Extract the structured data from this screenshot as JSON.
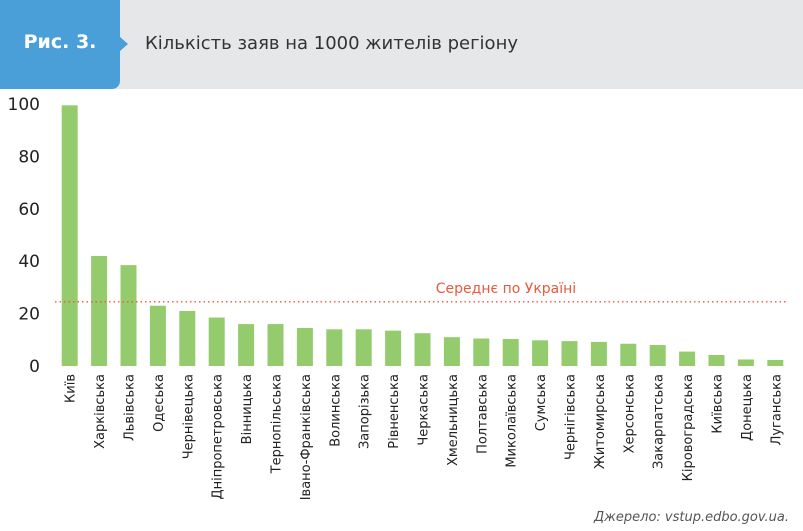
{
  "header": {
    "figure_label": "Рис. 3.",
    "title": "Кількість заяв на 1000 жителів регіону"
  },
  "colors": {
    "accent": "#4a9fd8",
    "bar": "#94cc6d",
    "average_line": "#e8593c",
    "header_bg": "#e6e7e8"
  },
  "chart_data": {
    "type": "bar",
    "title": "Кількість заяв на 1000 жителів регіону",
    "categories": [
      "Київ",
      "Харківська",
      "Львівська",
      "Одеська",
      "Чернівецька",
      "Дніпропетровська",
      "Вінницька",
      "Тернопільська",
      "Івано-Франківська",
      "Волинська",
      "Запорізька",
      "Рівненська",
      "Черкаська",
      "Хмельницька",
      "Полтавська",
      "Миколаївська",
      "Сумська",
      "Чернігівська",
      "Житомирська",
      "Херсонська",
      "Закарпатська",
      "Кіровоградська",
      "Київська",
      "Донецька",
      "Луганська"
    ],
    "values": [
      99.5,
      42,
      38.5,
      23,
      21,
      18.5,
      16,
      16,
      14.5,
      14,
      14,
      13.5,
      12.5,
      11,
      10.5,
      10.3,
      9.8,
      9.5,
      9.2,
      8.5,
      8,
      5.5,
      4.2,
      2.5,
      2.3
    ],
    "ylim": [
      0,
      100
    ],
    "yticks": [
      0,
      20,
      40,
      60,
      80,
      100
    ],
    "grid": false,
    "average": {
      "label": "Середнє по Україні",
      "value": 24.5
    }
  },
  "source": "Джерело: vstup.edbo.gov.ua."
}
